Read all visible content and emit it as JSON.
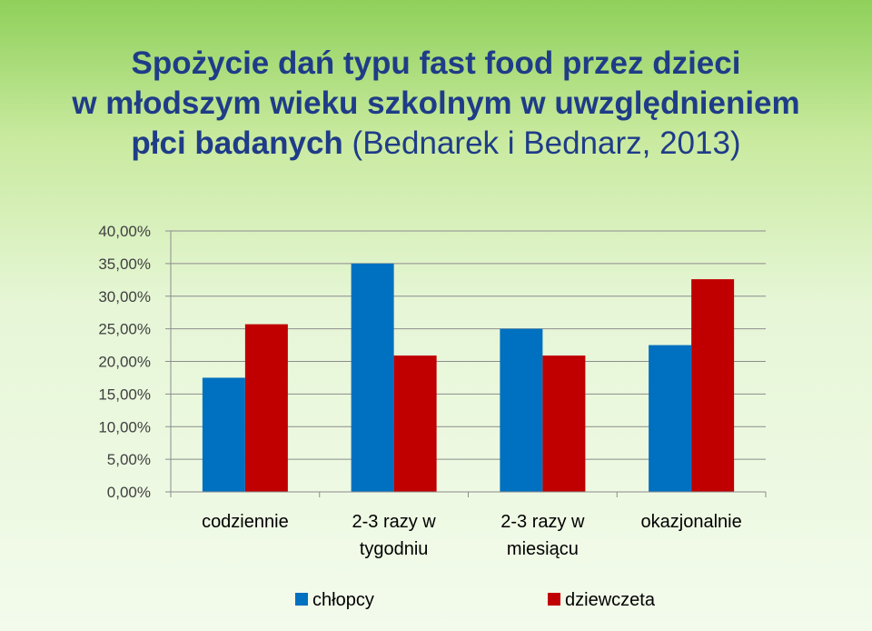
{
  "title": {
    "line1": "Spożycie dań typu fast food przez dzieci",
    "line2": "w młodszym wieku szkolnym w uwzględnieniem",
    "line3_bold": "płci badanych",
    "line3_normal": "(Bednarek i Bednarz, 2013)"
  },
  "chart_data": {
    "type": "bar",
    "title": "Spożycie dań typu fast food przez dzieci w młodszym wieku szkolnym w uwzględnieniem płci badanych (Bednarek i Bednarz, 2013)",
    "categories": [
      [
        "codziennie"
      ],
      [
        "2-3 razy w",
        "tygodniu"
      ],
      [
        "2-3 razy w",
        "miesiącu"
      ],
      [
        "okazjonalnie"
      ]
    ],
    "series": [
      {
        "name": "chłopcy",
        "color": "#0070c0",
        "values": [
          17.5,
          35.0,
          25.0,
          22.5
        ]
      },
      {
        "name": "dziewczeta",
        "color": "#c00000",
        "values": [
          25.7,
          20.9,
          20.9,
          32.6
        ]
      }
    ],
    "ylim": [
      0,
      40
    ],
    "yticks": [
      0,
      5,
      10,
      15,
      20,
      25,
      30,
      35,
      40
    ],
    "ytick_labels": [
      "0,00%",
      "5,00%",
      "10,00%",
      "15,00%",
      "20,00%",
      "25,00%",
      "30,00%",
      "35,00%",
      "40,00%"
    ],
    "grid": true,
    "legend": "bottom"
  }
}
